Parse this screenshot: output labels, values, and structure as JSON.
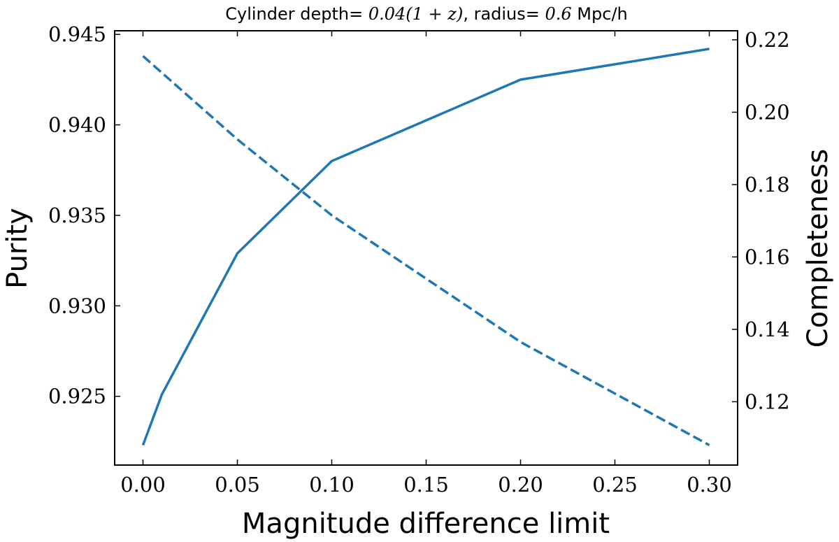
{
  "chart_data": {
    "type": "line",
    "title": {
      "prefix": "Cylinder depth= ",
      "depth_expr": "0.04(1 + z)",
      "middle": ", radius= ",
      "radius_value": "0.6",
      "unit": " Mpc/h"
    },
    "xlabel": "Magnitude difference limit",
    "ylabel_left": "Purity",
    "ylabel_right": "Completeness",
    "xlim": [
      -0.015,
      0.315
    ],
    "ylim_left": [
      0.9212,
      0.9452
    ],
    "ylim_right": [
      0.1025,
      0.2225
    ],
    "x_ticks": [
      "0.00",
      "0.05",
      "0.10",
      "0.15",
      "0.20",
      "0.25",
      "0.30"
    ],
    "y_left_ticks": [
      "0.925",
      "0.930",
      "0.935",
      "0.940",
      "0.945"
    ],
    "y_right_ticks": [
      "0.12",
      "0.14",
      "0.16",
      "0.18",
      "0.20",
      "0.22"
    ],
    "series": [
      {
        "name": "Purity",
        "axis": "left",
        "style": "solid",
        "color": "#1f77b4",
        "x": [
          0.0,
          0.01,
          0.05,
          0.1,
          0.2,
          0.3
        ],
        "values": [
          0.9223,
          0.9251,
          0.9329,
          0.938,
          0.9425,
          0.9442
        ]
      },
      {
        "name": "Completeness",
        "axis": "right",
        "style": "dashed",
        "color": "#1f77b4",
        "x": [
          0.0,
          0.05,
          0.1,
          0.2,
          0.3
        ],
        "values": [
          0.2155,
          0.1925,
          0.1715,
          0.1365,
          0.108
        ]
      }
    ]
  }
}
